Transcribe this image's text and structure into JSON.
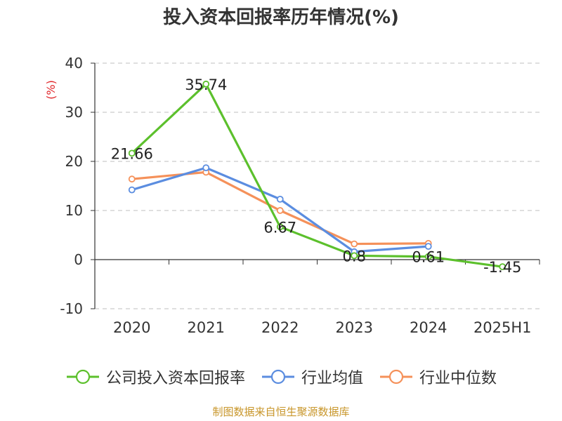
{
  "chart_data": {
    "type": "line",
    "title": "投入资本回报率历年情况(%)",
    "ylabel": "(%)",
    "xlabel": "",
    "categories": [
      "2020",
      "2021",
      "2022",
      "2023",
      "2024",
      "2025H1"
    ],
    "ylim": [
      -10,
      40
    ],
    "yticks": [
      -10,
      0,
      10,
      20,
      30,
      40
    ],
    "grid": true,
    "legend_position": "bottom",
    "series": [
      {
        "name": "公司投入资本回报率",
        "color": "#5cc02c",
        "values": [
          21.66,
          35.74,
          6.67,
          0.8,
          0.61,
          -1.45
        ],
        "labels": [
          "21.66",
          "35.74",
          "6.67",
          "0.8",
          "0.61",
          "-1.45"
        ]
      },
      {
        "name": "行业均值",
        "color": "#5b8de0",
        "values": [
          14.2,
          18.7,
          12.3,
          1.6,
          2.7,
          null
        ]
      },
      {
        "name": "行业中位数",
        "color": "#f5915a",
        "values": [
          16.4,
          17.8,
          10.0,
          3.2,
          3.3,
          null
        ]
      }
    ]
  },
  "ylabel_color": "#e0262a",
  "source_text": "制图数据来自恒生聚源数据库"
}
